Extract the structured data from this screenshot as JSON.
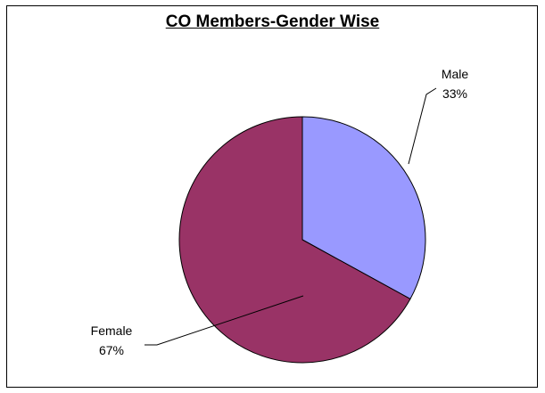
{
  "chart_data": {
    "type": "pie",
    "title": "CO Members-Gender Wise",
    "slices": [
      {
        "label": "Male",
        "value": 33,
        "value_label": "33%",
        "color": "#9999ff"
      },
      {
        "label": "Female",
        "value": 67,
        "value_label": "67%",
        "color": "#993366"
      }
    ],
    "start_angle_deg": 0,
    "direction": "clockwise",
    "legend": "none",
    "grid": false
  }
}
